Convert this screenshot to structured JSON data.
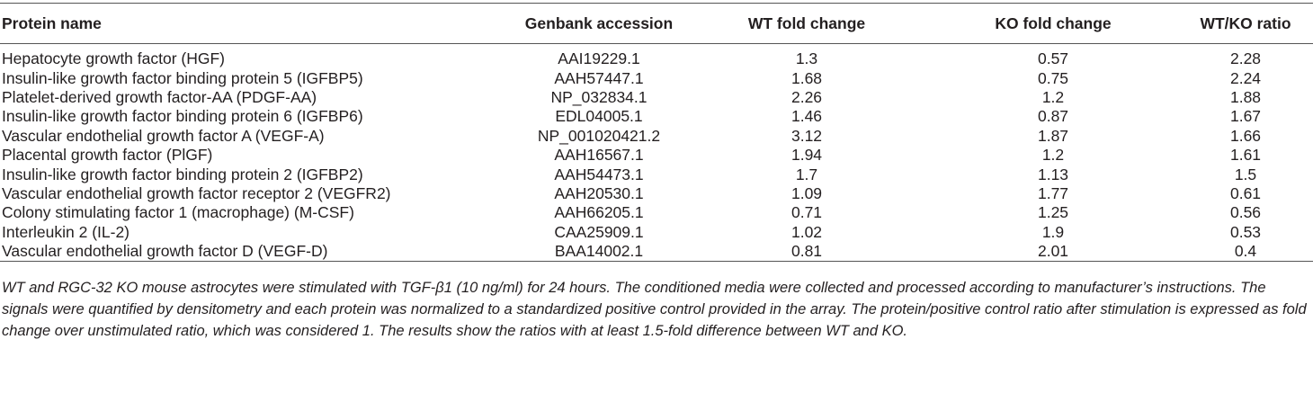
{
  "table": {
    "columns": [
      "Protein name",
      "Genbank accession",
      "WT fold change",
      "KO fold change",
      "WT/KO ratio"
    ],
    "rows": [
      [
        "Hepatocyte growth factor (HGF)",
        "AAI19229.1",
        1.3,
        0.57,
        2.28
      ],
      [
        "Insulin-like growth factor binding protein 5 (IGFBP5)",
        "AAH57447.1",
        1.68,
        0.75,
        2.24
      ],
      [
        "Platelet-derived growth factor-AA (PDGF-AA)",
        "NP_032834.1",
        2.26,
        1.2,
        1.88
      ],
      [
        "Insulin-like growth factor binding protein 6 (IGFBP6)",
        "EDL04005.1",
        1.46,
        0.87,
        1.67
      ],
      [
        "Vascular endothelial growth factor A (VEGF-A)",
        "NP_001020421.2",
        3.12,
        1.87,
        1.66
      ],
      [
        "Placental growth factor (PlGF)",
        "AAH16567.1",
        1.94,
        1.2,
        1.61
      ],
      [
        "Insulin-like growth factor binding protein 2 (IGFBP2)",
        "AAH54473.1",
        1.7,
        1.13,
        1.5
      ],
      [
        "Vascular endothelial growth factor receptor 2 (VEGFR2)",
        "AAH20530.1",
        1.09,
        1.77,
        0.61
      ],
      [
        "Colony stimulating factor 1 (macrophage) (M-CSF)",
        "AAH66205.1",
        0.71,
        1.25,
        0.56
      ],
      [
        "Interleukin 2 (IL-2)",
        "CAA25909.1",
        1.02,
        1.9,
        0.53
      ],
      [
        "Vascular endothelial growth factor D (VEGF-D)",
        "BAA14002.1",
        0.81,
        2.01,
        0.4
      ]
    ]
  },
  "footnote": "WT and RGC-32 KO mouse astrocytes were stimulated with TGF-β1 (10 ng/ml) for 24 hours. The conditioned media were collected and processed according to manufacturer’s instructions. The signals were quantified by densitometry and each protein was normalized to a standardized positive control provided in the array. The protein/positive control ratio after stimulation is expressed as fold change over unstimulated ratio, which was considered 1. The results show the ratios with at least 1.5-fold difference between WT and KO."
}
